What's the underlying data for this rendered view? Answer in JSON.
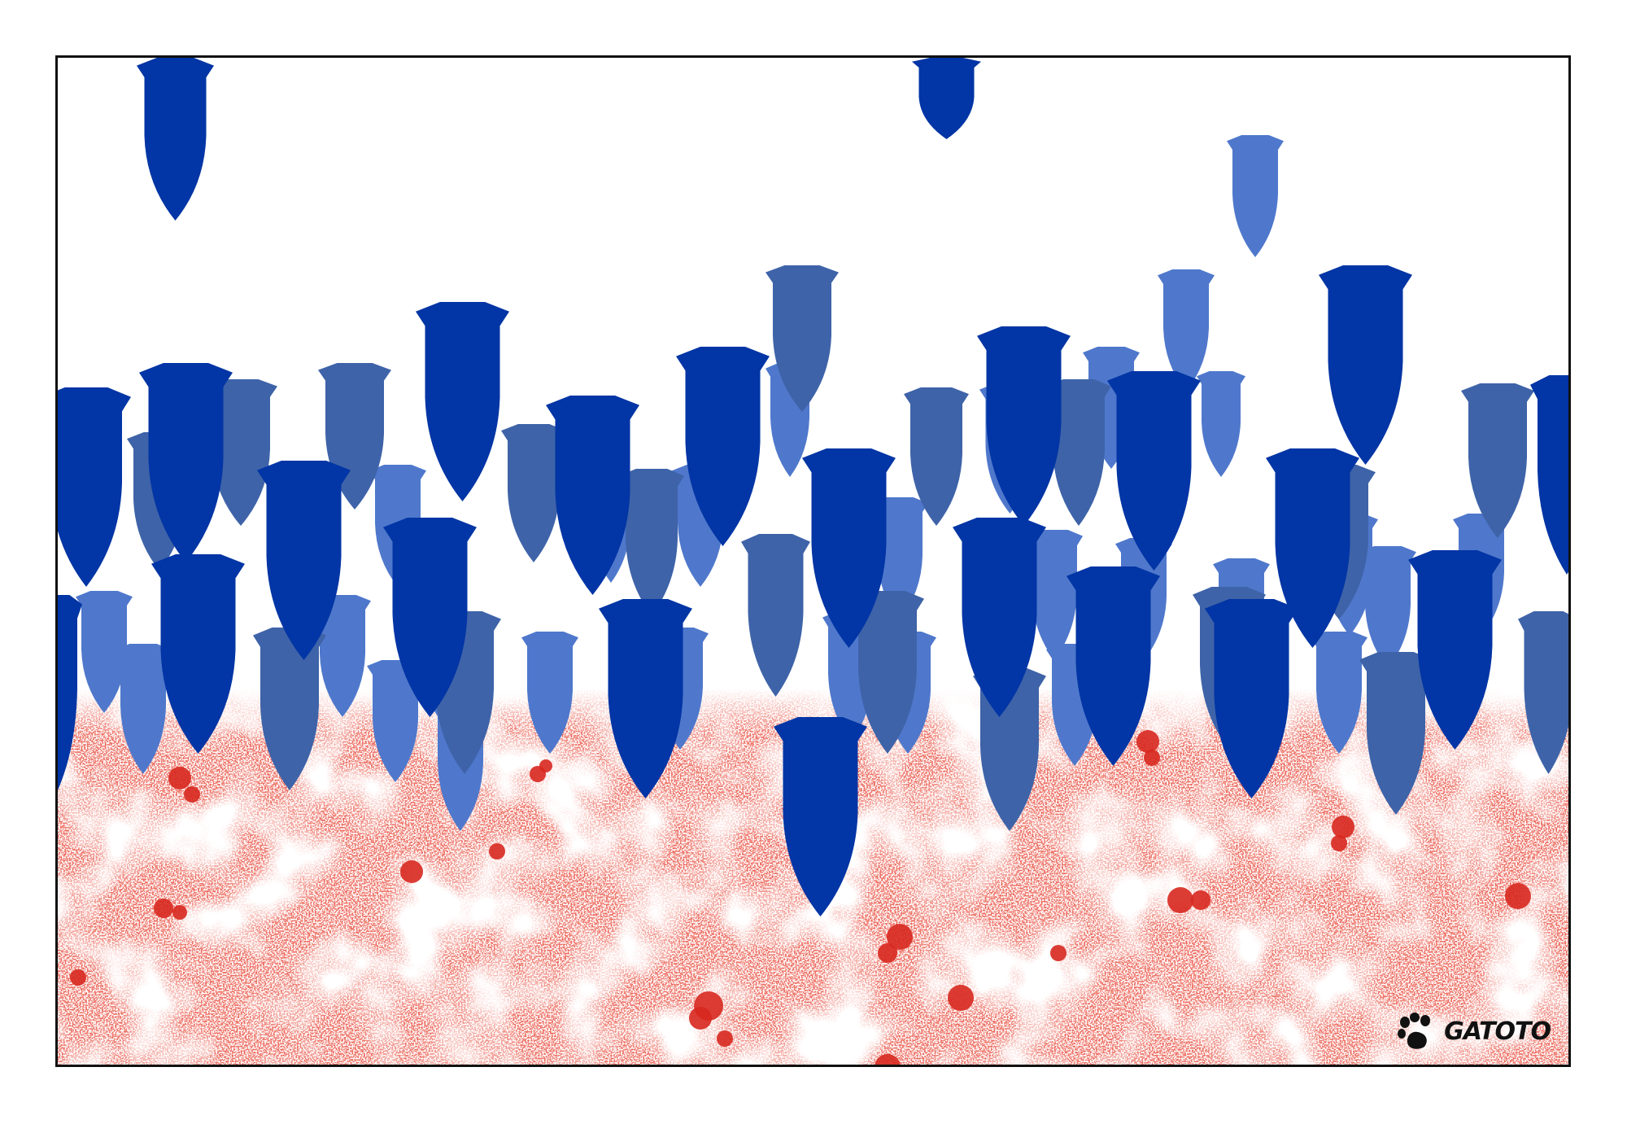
{
  "signature": {
    "text": "GATOTO",
    "icon": "paw-print-icon"
  },
  "colors": {
    "bomb_dark": "#0235a5",
    "bomb_mid": "#3e63a8",
    "bomb_light": "#4f78cc",
    "blood": "#d7281f",
    "frame": "#111111",
    "background": "#ffffff"
  }
}
